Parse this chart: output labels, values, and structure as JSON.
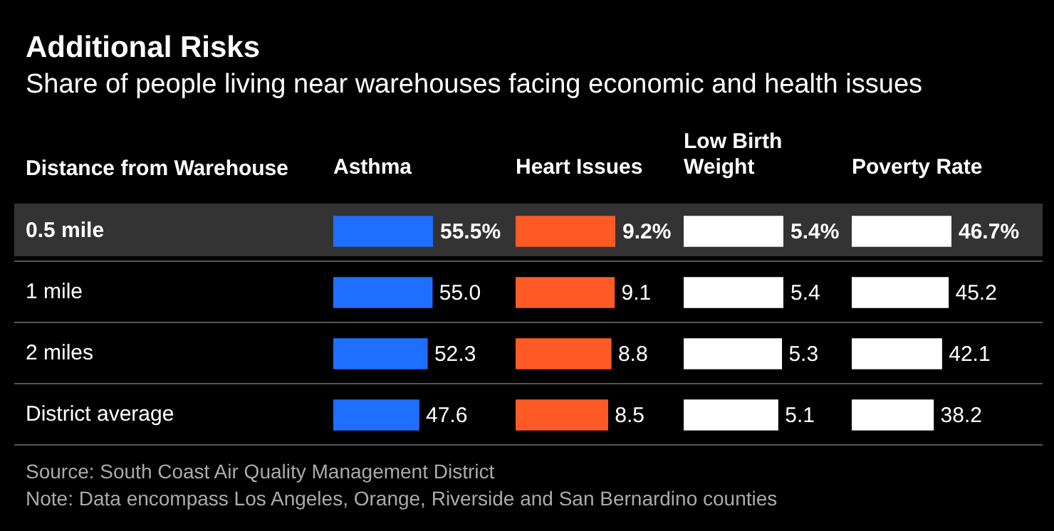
{
  "chart_data": [
    {
      "type": "bar",
      "orientation": "horizontal",
      "title": "Additional Risks",
      "subtitle": "Share of people living near warehouses facing economic and health issues",
      "ylabel": "Distance from Warehouse",
      "xlabel": "Asthma",
      "categories": [
        "0.5 mile",
        "1 mile",
        "2 miles",
        "District average"
      ],
      "values": [
        55.5,
        55.0,
        52.3,
        47.6
      ],
      "value_labels": [
        "55.5%",
        "55.0",
        "52.3",
        "47.6"
      ],
      "color": "#1f6fff",
      "tick_labels": "y",
      "annotations": [
        "Source: South Coast Air Quality Management District",
        "Note: Data encompass Los Angeles, Orange, Riverside and San Bernardino counties"
      ]
    },
    {
      "type": "bar",
      "orientation": "horizontal",
      "xlabel": "Heart Issues",
      "values": [
        9.2,
        9.1,
        8.8,
        8.5
      ],
      "value_labels": [
        "9.2%",
        "9.1",
        "8.8",
        "8.5"
      ],
      "color": "#ff5a26",
      "tick_labels": false
    },
    {
      "type": "bar",
      "orientation": "horizontal",
      "xlabel": "Low Birth Weight",
      "values": [
        5.4,
        5.4,
        5.3,
        5.1
      ],
      "value_labels": [
        "5.4%",
        "5.4",
        "5.3",
        "5.1"
      ],
      "color": "#ffffff",
      "tick_labels": false
    },
    {
      "type": "bar",
      "orientation": "horizontal",
      "xlabel": "Poverty Rate",
      "values": [
        46.7,
        45.2,
        42.1,
        38.2
      ],
      "value_labels": [
        "46.7%",
        "45.2",
        "42.1",
        "38.2"
      ],
      "color": "#ffffff",
      "tick_labels": false
    }
  ]
}
